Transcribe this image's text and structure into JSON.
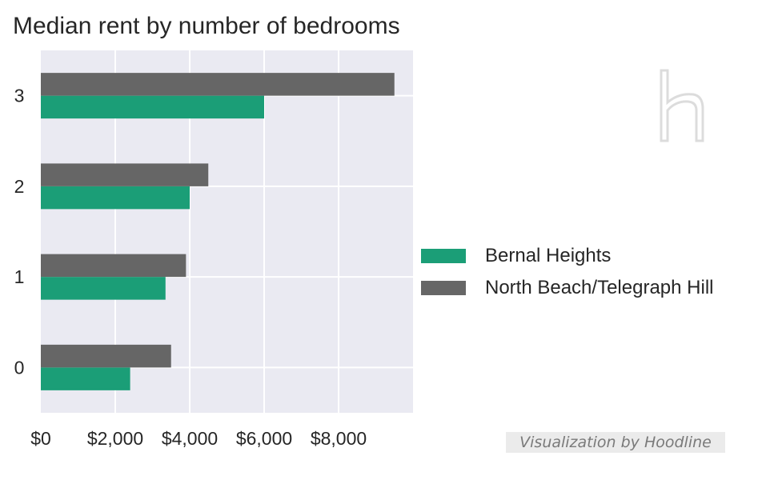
{
  "chart_data": {
    "type": "bar",
    "orientation": "horizontal",
    "title": "Median rent by number of bedrooms",
    "categories": [
      "0",
      "1",
      "2",
      "3"
    ],
    "series": [
      {
        "name": "Bernal Heights",
        "color": "#1b9e77",
        "values": [
          2400,
          3350,
          4000,
          6000
        ]
      },
      {
        "name": "North Beach/Telegraph Hill",
        "color": "#666666",
        "values": [
          3500,
          3900,
          4500,
          9500
        ]
      }
    ],
    "xlim": [
      0,
      10000
    ],
    "xticks": [
      0,
      2000,
      4000,
      6000,
      8000
    ],
    "xtick_labels": [
      "$0",
      "$2,000",
      "$4,000",
      "$6,000",
      "$8,000"
    ],
    "grid": true,
    "legend_position": "right"
  },
  "credit": "Visualization by Hoodline",
  "colors": {
    "plot_background": "#eaeaf2",
    "grid": "#ffffff"
  },
  "logo_icon": "hoodline-h-icon"
}
